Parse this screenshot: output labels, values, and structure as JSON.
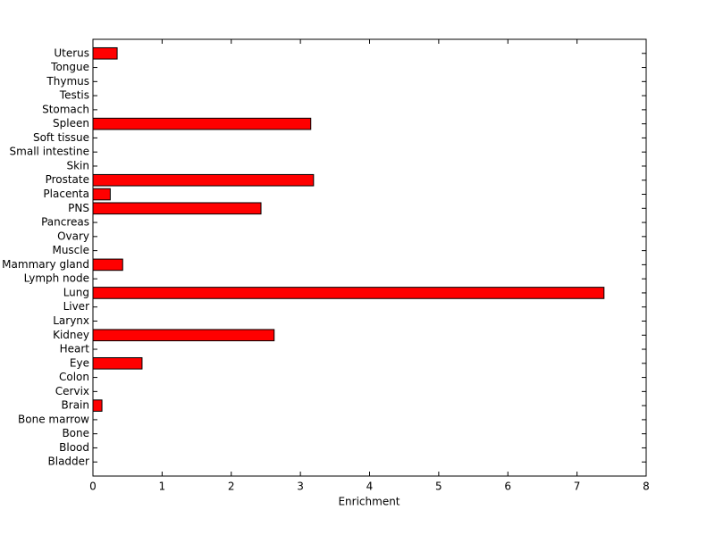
{
  "chart_data": {
    "type": "barh",
    "xlabel": "Enrichment",
    "categories": [
      "Bladder",
      "Blood",
      "Bone",
      "Bone marrow",
      "Brain",
      "Cervix",
      "Colon",
      "Eye",
      "Heart",
      "Kidney",
      "Larynx",
      "Liver",
      "Lung",
      "Lymph node",
      "Mammary gland",
      "Muscle",
      "Ovary",
      "Pancreas",
      "PNS",
      "Placenta",
      "Prostate",
      "Skin",
      "Small intestine",
      "Soft tissue",
      "Spleen",
      "Stomach",
      "Testis",
      "Thymus",
      "Tongue",
      "Uterus"
    ],
    "values": [
      0,
      0,
      0,
      0,
      0.13,
      0,
      0,
      0.71,
      0,
      2.62,
      0,
      0,
      7.39,
      0,
      0.43,
      0,
      0,
      0,
      2.43,
      0.25,
      3.19,
      0,
      0,
      0,
      3.15,
      0,
      0,
      0,
      0,
      0.35
    ],
    "color": "#ff0000",
    "xlim": [
      0,
      8
    ],
    "xticks": [
      0,
      1,
      2,
      3,
      4,
      5,
      6,
      7,
      8
    ]
  }
}
